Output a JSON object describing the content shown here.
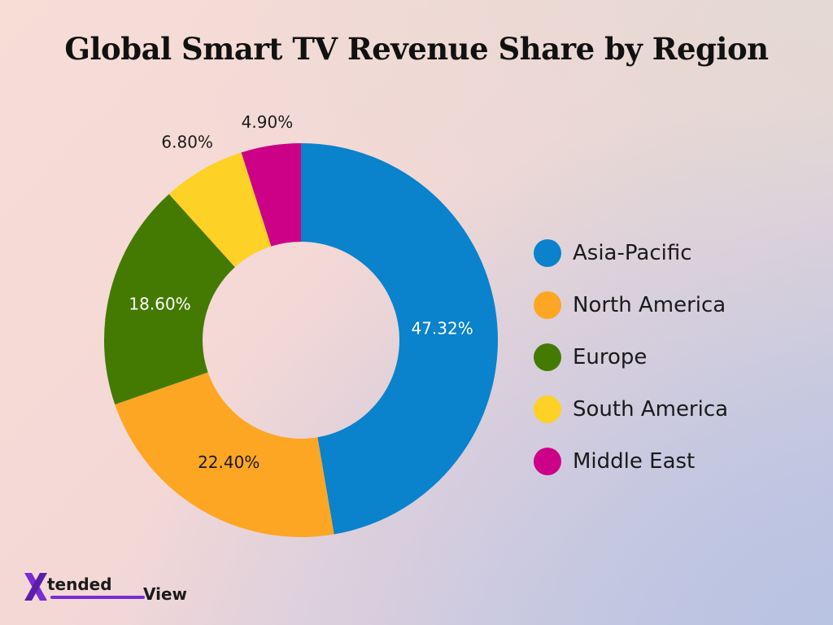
{
  "chart_data": {
    "type": "pie",
    "variant": "donut",
    "title": "Global Smart TV Revenue Share by Region",
    "series": [
      {
        "name": "Asia-Pacific",
        "value": 47.32,
        "label": "47.32%",
        "color": "#0a82cc"
      },
      {
        "name": "North America",
        "value": 22.4,
        "label": "22.40%",
        "color": "#fda624"
      },
      {
        "name": "Europe",
        "value": 18.6,
        "label": "18.60%",
        "color": "#447a02"
      },
      {
        "name": "South America",
        "value": 6.8,
        "label": "6.80%",
        "color": "#fdd125"
      },
      {
        "name": "Middle East",
        "value": 4.9,
        "label": "4.90%",
        "color": "#cd0088"
      }
    ],
    "legend_position": "right",
    "start_angle_deg": 0,
    "direction": "clockwise"
  },
  "logo": {
    "mark": "X",
    "word_1": "tended",
    "word_2": "View",
    "mark_color": "#7a2bd6"
  }
}
